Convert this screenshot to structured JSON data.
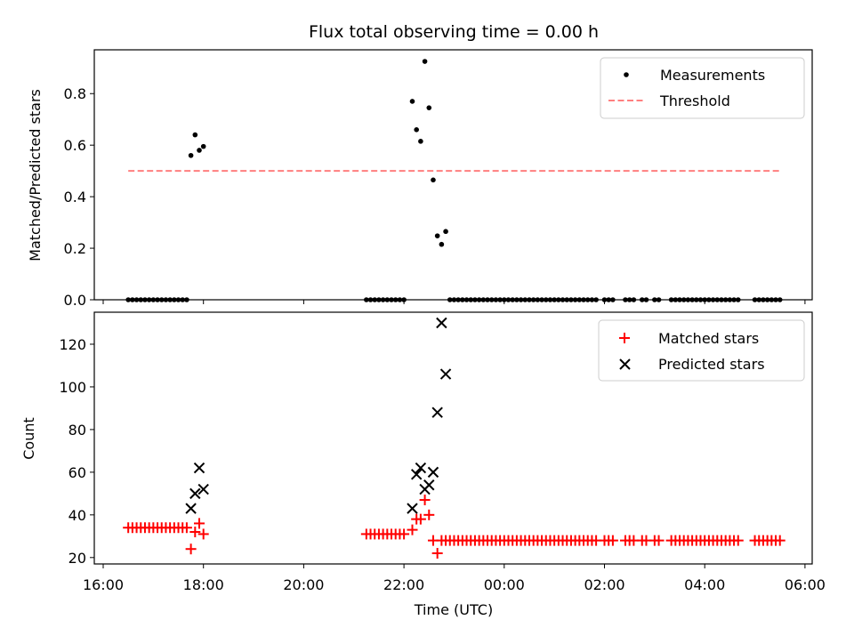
{
  "chart_data": [
    {
      "type": "scatter",
      "title": "Flux total observing time = 0.00 h",
      "xlabel": "",
      "ylabel": "Matched/Predicted stars",
      "xlim": [
        "16:00",
        "06:00"
      ],
      "ylim": [
        0,
        0.97
      ],
      "yticks": [
        0.0,
        0.2,
        0.4,
        0.6,
        0.8
      ],
      "legend": "top-right",
      "threshold": {
        "name": "Threshold",
        "value": 0.5,
        "x_start": "16:30",
        "x_end": "05:30",
        "color": "#ff7f7f"
      },
      "series": [
        {
          "name": "Measurements",
          "color": "#000000",
          "points": [
            [
              "16:30",
              0
            ],
            [
              "16:35",
              0
            ],
            [
              "16:40",
              0
            ],
            [
              "16:45",
              0
            ],
            [
              "16:50",
              0
            ],
            [
              "16:55",
              0
            ],
            [
              "17:00",
              0
            ],
            [
              "17:05",
              0
            ],
            [
              "17:10",
              0
            ],
            [
              "17:15",
              0
            ],
            [
              "17:20",
              0
            ],
            [
              "17:25",
              0
            ],
            [
              "17:30",
              0
            ],
            [
              "17:35",
              0
            ],
            [
              "17:40",
              0
            ],
            [
              "17:45",
              0.56
            ],
            [
              "17:50",
              0.64
            ],
            [
              "17:55",
              0.58
            ],
            [
              "18:00",
              0.595
            ],
            [
              "21:15",
              0
            ],
            [
              "21:20",
              0
            ],
            [
              "21:25",
              0
            ],
            [
              "21:30",
              0
            ],
            [
              "21:35",
              0
            ],
            [
              "21:40",
              0
            ],
            [
              "21:45",
              0
            ],
            [
              "21:50",
              0
            ],
            [
              "21:55",
              0
            ],
            [
              "22:00",
              0
            ],
            [
              "22:10",
              0.77
            ],
            [
              "22:15",
              0.66
            ],
            [
              "22:20",
              0.615
            ],
            [
              "22:25",
              0.925
            ],
            [
              "22:30",
              0.745
            ],
            [
              "22:35",
              0.465
            ],
            [
              "22:40",
              0.248
            ],
            [
              "22:45",
              0.215
            ],
            [
              "22:50",
              0.265
            ],
            [
              "22:55",
              0
            ],
            [
              "23:00",
              0
            ],
            [
              "23:05",
              0
            ],
            [
              "23:10",
              0
            ],
            [
              "23:15",
              0
            ],
            [
              "23:20",
              0
            ],
            [
              "23:25",
              0
            ],
            [
              "23:30",
              0
            ],
            [
              "23:35",
              0
            ],
            [
              "23:40",
              0
            ],
            [
              "23:45",
              0
            ],
            [
              "23:50",
              0
            ],
            [
              "23:55",
              0
            ],
            [
              "00:00",
              0
            ],
            [
              "00:05",
              0
            ],
            [
              "00:10",
              0
            ],
            [
              "00:15",
              0
            ],
            [
              "00:20",
              0
            ],
            [
              "00:25",
              0
            ],
            [
              "00:30",
              0
            ],
            [
              "00:35",
              0
            ],
            [
              "00:40",
              0
            ],
            [
              "00:45",
              0
            ],
            [
              "00:50",
              0
            ],
            [
              "00:55",
              0
            ],
            [
              "01:00",
              0
            ],
            [
              "01:05",
              0
            ],
            [
              "01:10",
              0
            ],
            [
              "01:15",
              0
            ],
            [
              "01:20",
              0
            ],
            [
              "01:25",
              0
            ],
            [
              "01:30",
              0
            ],
            [
              "01:35",
              0
            ],
            [
              "01:40",
              0
            ],
            [
              "01:45",
              0
            ],
            [
              "01:50",
              0
            ],
            [
              "02:00",
              0
            ],
            [
              "02:05",
              0
            ],
            [
              "02:10",
              0
            ],
            [
              "02:25",
              0
            ],
            [
              "02:30",
              0
            ],
            [
              "02:35",
              0
            ],
            [
              "02:45",
              0
            ],
            [
              "02:50",
              0
            ],
            [
              "03:00",
              0
            ],
            [
              "03:05",
              0
            ],
            [
              "03:20",
              0
            ],
            [
              "03:25",
              0
            ],
            [
              "03:30",
              0
            ],
            [
              "03:35",
              0
            ],
            [
              "03:40",
              0
            ],
            [
              "03:45",
              0
            ],
            [
              "03:50",
              0
            ],
            [
              "03:55",
              0
            ],
            [
              "04:00",
              0
            ],
            [
              "04:05",
              0
            ],
            [
              "04:10",
              0
            ],
            [
              "04:15",
              0
            ],
            [
              "04:20",
              0
            ],
            [
              "04:25",
              0
            ],
            [
              "04:30",
              0
            ],
            [
              "04:35",
              0
            ],
            [
              "04:40",
              0
            ],
            [
              "05:00",
              0
            ],
            [
              "05:05",
              0
            ],
            [
              "05:10",
              0
            ],
            [
              "05:15",
              0
            ],
            [
              "05:20",
              0
            ],
            [
              "05:25",
              0
            ],
            [
              "05:30",
              0
            ]
          ]
        }
      ]
    },
    {
      "type": "scatter",
      "title": "",
      "xlabel": "Time (UTC)",
      "ylabel": "Count",
      "xlim": [
        "16:00",
        "06:00"
      ],
      "ylim": [
        17,
        135
      ],
      "yticks": [
        20,
        40,
        60,
        80,
        100,
        120
      ],
      "xticks": [
        "16:00",
        "18:00",
        "20:00",
        "22:00",
        "00:00",
        "02:00",
        "04:00",
        "06:00"
      ],
      "legend": "top-right",
      "series": [
        {
          "name": "Matched stars",
          "marker": "plus",
          "color": "#ff0000",
          "points": [
            [
              "16:30",
              34
            ],
            [
              "16:35",
              34
            ],
            [
              "16:40",
              34
            ],
            [
              "16:45",
              34
            ],
            [
              "16:50",
              34
            ],
            [
              "16:55",
              34
            ],
            [
              "17:00",
              34
            ],
            [
              "17:05",
              34
            ],
            [
              "17:10",
              34
            ],
            [
              "17:15",
              34
            ],
            [
              "17:20",
              34
            ],
            [
              "17:25",
              34
            ],
            [
              "17:30",
              34
            ],
            [
              "17:35",
              34
            ],
            [
              "17:40",
              34
            ],
            [
              "17:45",
              24
            ],
            [
              "17:50",
              32
            ],
            [
              "17:55",
              36
            ],
            [
              "18:00",
              31
            ],
            [
              "21:15",
              31
            ],
            [
              "21:20",
              31
            ],
            [
              "21:25",
              31
            ],
            [
              "21:30",
              31
            ],
            [
              "21:35",
              31
            ],
            [
              "21:40",
              31
            ],
            [
              "21:45",
              31
            ],
            [
              "21:50",
              31
            ],
            [
              "21:55",
              31
            ],
            [
              "22:00",
              31
            ],
            [
              "22:10",
              33
            ],
            [
              "22:15",
              38
            ],
            [
              "22:20",
              38
            ],
            [
              "22:25",
              47
            ],
            [
              "22:30",
              40
            ],
            [
              "22:35",
              28
            ],
            [
              "22:40",
              22
            ],
            [
              "22:45",
              28
            ],
            [
              "22:50",
              28
            ],
            [
              "22:55",
              28
            ],
            [
              "23:00",
              28
            ],
            [
              "23:05",
              28
            ],
            [
              "23:10",
              28
            ],
            [
              "23:15",
              28
            ],
            [
              "23:20",
              28
            ],
            [
              "23:25",
              28
            ],
            [
              "23:30",
              28
            ],
            [
              "23:35",
              28
            ],
            [
              "23:40",
              28
            ],
            [
              "23:45",
              28
            ],
            [
              "23:50",
              28
            ],
            [
              "23:55",
              28
            ],
            [
              "00:00",
              28
            ],
            [
              "00:05",
              28
            ],
            [
              "00:10",
              28
            ],
            [
              "00:15",
              28
            ],
            [
              "00:20",
              28
            ],
            [
              "00:25",
              28
            ],
            [
              "00:30",
              28
            ],
            [
              "00:35",
              28
            ],
            [
              "00:40",
              28
            ],
            [
              "00:45",
              28
            ],
            [
              "00:50",
              28
            ],
            [
              "00:55",
              28
            ],
            [
              "01:00",
              28
            ],
            [
              "01:05",
              28
            ],
            [
              "01:10",
              28
            ],
            [
              "01:15",
              28
            ],
            [
              "01:20",
              28
            ],
            [
              "01:25",
              28
            ],
            [
              "01:30",
              28
            ],
            [
              "01:35",
              28
            ],
            [
              "01:40",
              28
            ],
            [
              "01:45",
              28
            ],
            [
              "01:50",
              28
            ],
            [
              "02:00",
              28
            ],
            [
              "02:05",
              28
            ],
            [
              "02:10",
              28
            ],
            [
              "02:25",
              28
            ],
            [
              "02:30",
              28
            ],
            [
              "02:35",
              28
            ],
            [
              "02:45",
              28
            ],
            [
              "02:50",
              28
            ],
            [
              "03:00",
              28
            ],
            [
              "03:05",
              28
            ],
            [
              "03:20",
              28
            ],
            [
              "03:25",
              28
            ],
            [
              "03:30",
              28
            ],
            [
              "03:35",
              28
            ],
            [
              "03:40",
              28
            ],
            [
              "03:45",
              28
            ],
            [
              "03:50",
              28
            ],
            [
              "03:55",
              28
            ],
            [
              "04:00",
              28
            ],
            [
              "04:05",
              28
            ],
            [
              "04:10",
              28
            ],
            [
              "04:15",
              28
            ],
            [
              "04:20",
              28
            ],
            [
              "04:25",
              28
            ],
            [
              "04:30",
              28
            ],
            [
              "04:35",
              28
            ],
            [
              "04:40",
              28
            ],
            [
              "05:00",
              28
            ],
            [
              "05:05",
              28
            ],
            [
              "05:10",
              28
            ],
            [
              "05:15",
              28
            ],
            [
              "05:20",
              28
            ],
            [
              "05:25",
              28
            ],
            [
              "05:30",
              28
            ]
          ]
        },
        {
          "name": "Predicted stars",
          "marker": "x",
          "color": "#000000",
          "points": [
            [
              "17:45",
              43
            ],
            [
              "17:50",
              50
            ],
            [
              "17:55",
              62
            ],
            [
              "18:00",
              52
            ],
            [
              "22:10",
              43
            ],
            [
              "22:15",
              59
            ],
            [
              "22:20",
              62
            ],
            [
              "22:25",
              52
            ],
            [
              "22:30",
              54
            ],
            [
              "22:35",
              60
            ],
            [
              "22:40",
              88
            ],
            [
              "22:45",
              130
            ],
            [
              "22:50",
              106
            ]
          ]
        }
      ]
    }
  ]
}
